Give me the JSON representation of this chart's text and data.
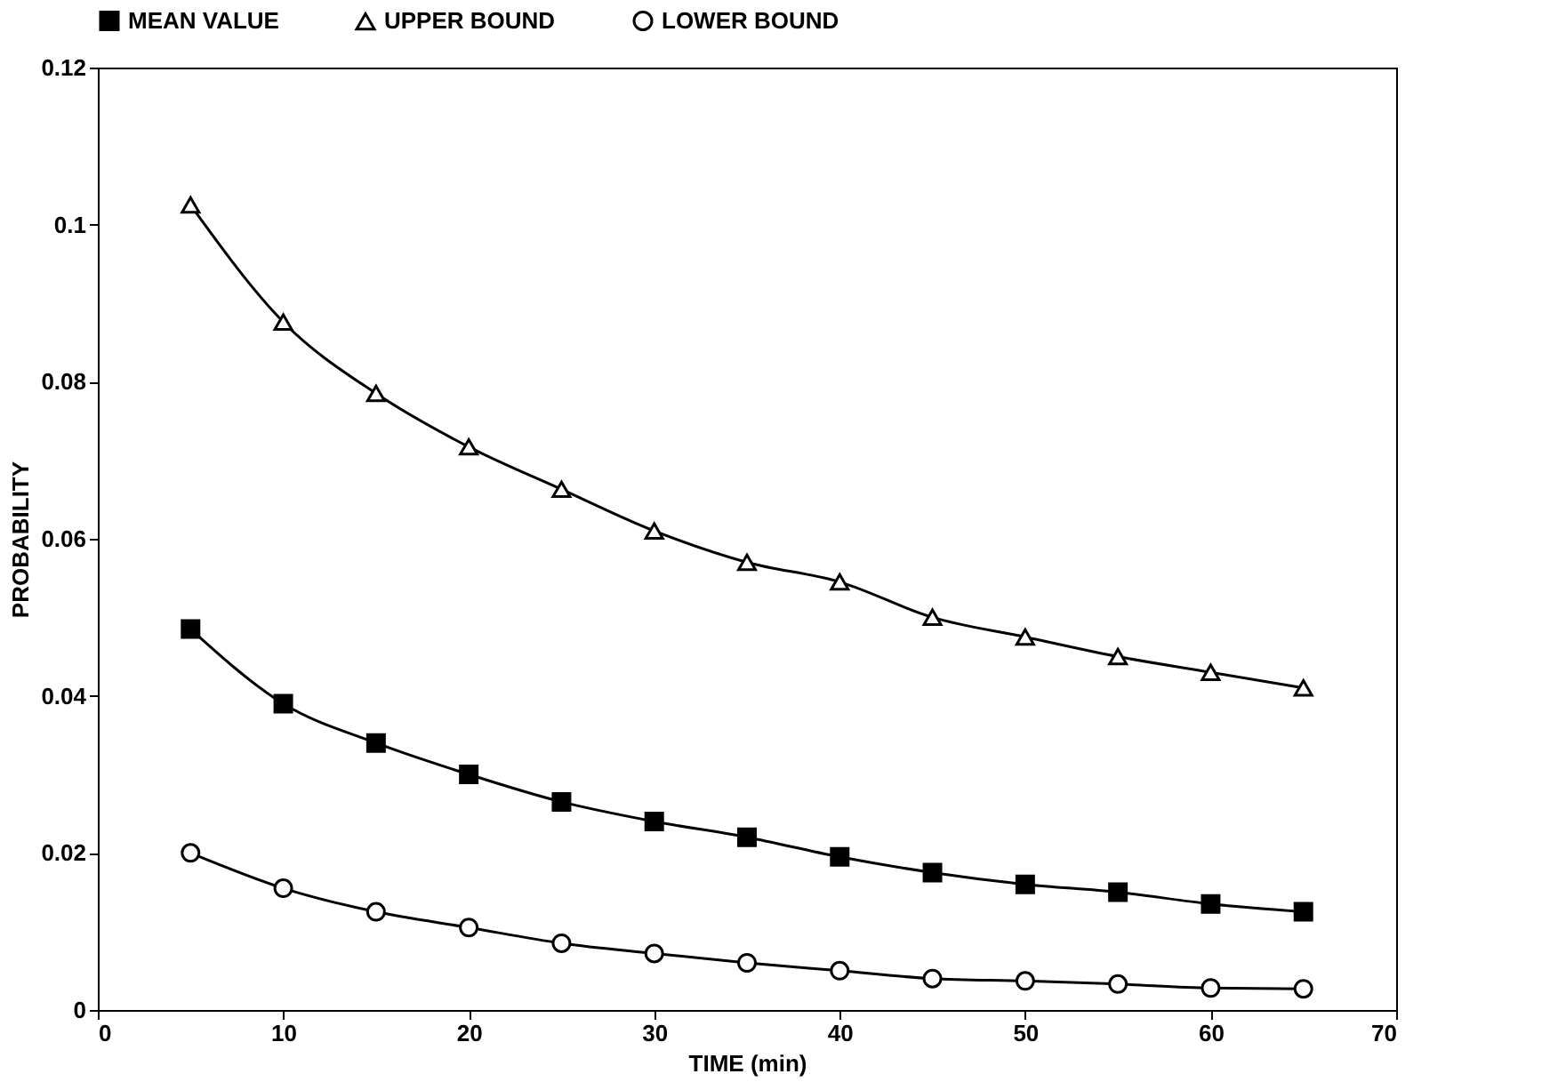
{
  "chart_data": {
    "type": "line",
    "xlabel": "TIME (min)",
    "ylabel": "PROBABILITY",
    "x": [
      5,
      10,
      15,
      20,
      25,
      30,
      35,
      40,
      45,
      50,
      55,
      60,
      65
    ],
    "series": [
      {
        "name": "MEAN VALUE",
        "color": "#000000",
        "marker": "square",
        "values": [
          0.0485,
          0.039,
          0.034,
          0.03,
          0.0265,
          0.024,
          0.022,
          0.0195,
          0.0175,
          0.016,
          0.015,
          0.0135,
          0.0125
        ]
      },
      {
        "name": "UPPER BOUND",
        "color": "#000000",
        "marker": "triangle",
        "values": [
          0.1025,
          0.0876,
          0.0785,
          0.0717,
          0.0663,
          0.061,
          0.057,
          0.0545,
          0.05,
          0.0475,
          0.045,
          0.043,
          0.041
        ]
      },
      {
        "name": "LOWER BOUND",
        "color": "#000000",
        "marker": "circle",
        "values": [
          0.02,
          0.0155,
          0.0125,
          0.0105,
          0.0085,
          0.0072,
          0.006,
          0.005,
          0.004,
          0.0037,
          0.0033,
          0.0028,
          0.0027
        ]
      }
    ],
    "xlim": [
      0,
      70
    ],
    "xticks": [
      0,
      10,
      20,
      30,
      40,
      50,
      60,
      70
    ],
    "ylim": [
      0,
      0.12
    ],
    "yticks": [
      0,
      0.02,
      0.04,
      0.06,
      0.08,
      0.1,
      0.12
    ],
    "grid": false,
    "legend": "top",
    "line_style": "solid"
  }
}
